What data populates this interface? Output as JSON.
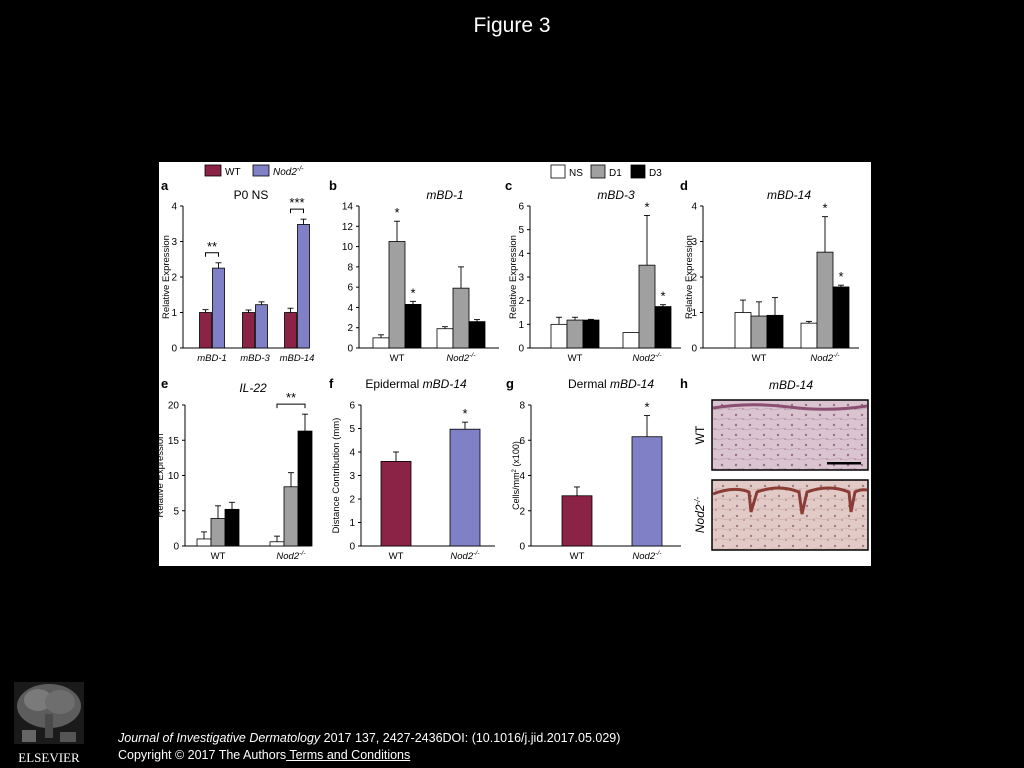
{
  "slide": {
    "title": "Figure 3"
  },
  "footer": {
    "journal": "Journal of Investigative Dermatology",
    "citation": " 2017 137, 2427-2436DOI: (10.1016/j.jid.2017.05.029)",
    "copyright": "Copyright © 2017 The Authors",
    "terms": " Terms and Conditions"
  },
  "publisher": {
    "name": "ELSEVIER"
  },
  "colors": {
    "wt": "#8B2346",
    "nod2": "#8080C6",
    "ns": "#FFFFFF",
    "d1": "#A0A0A0",
    "d3": "#000000"
  },
  "legends": {
    "genotype": [
      {
        "label": "WT",
        "color_key": "wt"
      },
      {
        "label": "Nod2",
        "sup": "-/-",
        "color_key": "nod2"
      }
    ],
    "timepoint": [
      {
        "label": "NS",
        "color_key": "ns"
      },
      {
        "label": "D1",
        "color_key": "d1"
      },
      {
        "label": "D3",
        "color_key": "d3"
      }
    ]
  },
  "chart_data": [
    {
      "panel": "a",
      "type": "bar",
      "title": "P0 NS",
      "ylabel": "Relative Expression",
      "ylim": [
        0,
        4
      ],
      "yticks": [
        0,
        1,
        2,
        3,
        4
      ],
      "categories": [
        "mBD-1",
        "mBD-3",
        "mBD-14"
      ],
      "series": [
        {
          "name": "WT",
          "color_key": "wt",
          "values": [
            1.0,
            1.0,
            1.0
          ],
          "errors": [
            0.08,
            0.07,
            0.12
          ]
        },
        {
          "name": "Nod2-/-",
          "color_key": "nod2",
          "values": [
            2.25,
            1.22,
            3.48
          ],
          "errors": [
            0.15,
            0.08,
            0.15
          ]
        }
      ],
      "annotations": [
        {
          "category": 0,
          "text": "**"
        },
        {
          "category": 2,
          "text": "***"
        }
      ]
    },
    {
      "panel": "b",
      "type": "bar",
      "title": "mBD-1",
      "ylabel": "",
      "ylim": [
        0,
        14
      ],
      "yticks": [
        0,
        2,
        4,
        6,
        8,
        10,
        12,
        14
      ],
      "categories": [
        "WT",
        "Nod2-/-"
      ],
      "series": [
        {
          "name": "NS",
          "color_key": "ns",
          "values": [
            1.0,
            1.9
          ],
          "errors": [
            0.3,
            0.2
          ],
          "stars": [
            "",
            ""
          ]
        },
        {
          "name": "D1",
          "color_key": "d1",
          "values": [
            10.5,
            5.9
          ],
          "errors": [
            2.0,
            2.1
          ],
          "stars": [
            "*",
            ""
          ]
        },
        {
          "name": "D3",
          "color_key": "d3",
          "values": [
            4.3,
            2.6
          ],
          "errors": [
            0.3,
            0.2
          ],
          "stars": [
            "*",
            ""
          ]
        }
      ]
    },
    {
      "panel": "c",
      "type": "bar",
      "title": "mBD-3",
      "ylabel": "Relative Expression",
      "ylim": [
        0,
        6
      ],
      "yticks": [
        0,
        1,
        2,
        3,
        4,
        5,
        6
      ],
      "categories": [
        "WT",
        "Nod2-/-"
      ],
      "series": [
        {
          "name": "NS",
          "color_key": "ns",
          "values": [
            1.0,
            0.65
          ],
          "errors": [
            0.3,
            0.0
          ],
          "stars": [
            "",
            ""
          ]
        },
        {
          "name": "D1",
          "color_key": "d1",
          "values": [
            1.18,
            3.5
          ],
          "errors": [
            0.12,
            2.1
          ],
          "stars": [
            "",
            "*"
          ]
        },
        {
          "name": "D3",
          "color_key": "d3",
          "values": [
            1.18,
            1.75
          ],
          "errors": [
            0.03,
            0.08
          ],
          "stars": [
            "",
            "*"
          ]
        }
      ]
    },
    {
      "panel": "d",
      "type": "bar",
      "title": "mBD-14",
      "ylabel": "Relative Expression",
      "ylim": [
        0,
        4
      ],
      "yticks": [
        0,
        1,
        2,
        3,
        4
      ],
      "categories": [
        "WT",
        "Nod2-/-"
      ],
      "series": [
        {
          "name": "NS",
          "color_key": "ns",
          "values": [
            1.0,
            0.7
          ],
          "errors": [
            0.35,
            0.05
          ],
          "stars": [
            "",
            ""
          ]
        },
        {
          "name": "D1",
          "color_key": "d1",
          "values": [
            0.9,
            2.7
          ],
          "errors": [
            0.4,
            1.0
          ],
          "stars": [
            "",
            "*"
          ]
        },
        {
          "name": "D3",
          "color_key": "d3",
          "values": [
            0.92,
            1.72
          ],
          "errors": [
            0.5,
            0.05
          ],
          "stars": [
            "",
            "*"
          ]
        }
      ]
    },
    {
      "panel": "e",
      "type": "bar",
      "title": "IL-22",
      "ylabel": "Relative Expression",
      "ylim": [
        0,
        20
      ],
      "yticks": [
        0,
        5,
        10,
        15,
        20
      ],
      "categories": [
        "WT",
        "Nod2-/-"
      ],
      "series": [
        {
          "name": "NS",
          "color_key": "ns",
          "values": [
            1.0,
            0.6
          ],
          "errors": [
            1.0,
            0.8
          ]
        },
        {
          "name": "D1",
          "color_key": "d1",
          "values": [
            3.9,
            8.4
          ],
          "errors": [
            1.8,
            2.0
          ]
        },
        {
          "name": "D3",
          "color_key": "d3",
          "values": [
            5.2,
            16.3
          ],
          "errors": [
            1.0,
            2.4
          ]
        }
      ],
      "annotations": [
        {
          "category": 1,
          "text": "**"
        }
      ]
    },
    {
      "panel": "f",
      "type": "bar",
      "title": "Epidermal mBD-14",
      "ylabel": "Distance Contribution (mm)",
      "ylim": [
        0,
        6
      ],
      "yticks": [
        0,
        1,
        2,
        3,
        4,
        5,
        6
      ],
      "categories": [
        "WT",
        "Nod2-/-"
      ],
      "series": [
        {
          "name": "",
          "color_keys": [
            "wt",
            "nod2"
          ],
          "values": [
            3.6,
            4.97
          ],
          "errors": [
            0.4,
            0.3
          ],
          "stars": [
            "",
            "*"
          ]
        }
      ]
    },
    {
      "panel": "g",
      "type": "bar",
      "title": "Dermal mBD-14",
      "ylabel": "Cells/mm2 (x100)",
      "ylim": [
        0,
        8
      ],
      "yticks": [
        0,
        2,
        4,
        6,
        8
      ],
      "categories": [
        "WT",
        "Nod2-/-"
      ],
      "series": [
        {
          "name": "",
          "color_keys": [
            "wt",
            "nod2"
          ],
          "values": [
            2.85,
            6.2
          ],
          "errors": [
            0.5,
            1.2
          ],
          "stars": [
            "",
            "*"
          ]
        }
      ]
    }
  ],
  "histology": {
    "panel": "h",
    "title": "mBD-14",
    "rows": [
      {
        "label": "WT"
      },
      {
        "label": "Nod2",
        "sup": "-/-"
      }
    ]
  }
}
